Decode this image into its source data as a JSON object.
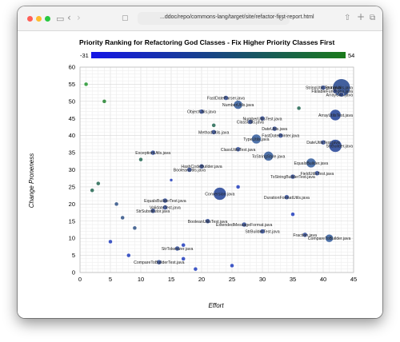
{
  "browser": {
    "url": "...ddoc/repo/commons-lang/target/site/refactor-first-report.html"
  },
  "chart_data": {
    "type": "scatter",
    "title": "Priority Ranking for Refactoring God Classes - Fix Higher Priority Classes First",
    "xlabel": "Effort",
    "ylabel": "Change Proneness",
    "xlim": [
      0,
      45
    ],
    "ylim": [
      0,
      60
    ],
    "x_ticks": [
      0,
      5,
      10,
      15,
      20,
      25,
      30,
      35,
      40,
      45
    ],
    "y_ticks": [
      0,
      5,
      10,
      15,
      20,
      25,
      30,
      35,
      40,
      45,
      50,
      55,
      60
    ],
    "grid": true,
    "colorscale": {
      "min_label": "-31",
      "max_label": "54",
      "low_color": "#1515e6",
      "high_color": "#1a7a1a"
    },
    "points": [
      {
        "x": 43,
        "y": 54,
        "r": 11,
        "c": "#2f4f94",
        "label": "StringUtils.java"
      },
      {
        "x": 40,
        "y": 54,
        "r": 3,
        "c": "#3b55a0",
        "label": "StringUtilsTest.java"
      },
      {
        "x": 42,
        "y": 53,
        "r": 3,
        "c": "#3b55a0",
        "label": "FailableFunctions.java"
      },
      {
        "x": 43,
        "y": 52,
        "r": 3,
        "c": "#3b55a0",
        "label": "ArrayUtils.java"
      },
      {
        "x": 42,
        "y": 46,
        "r": 7,
        "c": "#2c4a9a",
        "label": "ArrayUtilsTest.java"
      },
      {
        "x": 36,
        "y": 48,
        "r": 2.5,
        "c": "#2e6e5a",
        "label": ""
      },
      {
        "x": 24,
        "y": 51,
        "r": 3,
        "c": "#3b55a0",
        "label": "FastDateParser.java"
      },
      {
        "x": 26,
        "y": 49,
        "r": 5.5,
        "c": "#3c63a0",
        "label": "NumberUtils.java"
      },
      {
        "x": 20,
        "y": 47,
        "r": 3,
        "c": "#3b55a0",
        "label": "ObjectUtils.java"
      },
      {
        "x": 30,
        "y": 45,
        "r": 3,
        "c": "#3b55a0",
        "label": "NumberUtilsTest.java"
      },
      {
        "x": 28,
        "y": 44,
        "r": 3,
        "c": "#3b55a0",
        "label": "ClassUtils.java"
      },
      {
        "x": 22,
        "y": 43,
        "r": 2.5,
        "c": "#2e6e5a",
        "label": ""
      },
      {
        "x": 32,
        "y": 42,
        "r": 3,
        "c": "#3b55a0",
        "label": "DateUtils.java"
      },
      {
        "x": 22,
        "y": 41,
        "r": 3,
        "c": "#3b55a0",
        "label": "MethodUtils.java"
      },
      {
        "x": 33,
        "y": 40,
        "r": 3,
        "c": "#3b55a0",
        "label": "FastDatePrinter.java"
      },
      {
        "x": 29,
        "y": 39,
        "r": 6,
        "c": "#3c63a0",
        "label": "TypeUtils.java"
      },
      {
        "x": 42,
        "y": 37,
        "r": 8,
        "c": "#2c4a9a",
        "label": "StrBuilder.java"
      },
      {
        "x": 40,
        "y": 38,
        "r": 3,
        "c": "#3b55a0",
        "label": "DateUtilsTest.java"
      },
      {
        "x": 26,
        "y": 36,
        "r": 3,
        "c": "#3b55a0",
        "label": "ClassUtilsTest.java"
      },
      {
        "x": 31,
        "y": 34,
        "r": 6,
        "c": "#3c63a0",
        "label": "ToStringStyle.java"
      },
      {
        "x": 12,
        "y": 35,
        "r": 3,
        "c": "#3b55a0",
        "label": "ExceptionUtils.java"
      },
      {
        "x": 10,
        "y": 33,
        "r": 2.5,
        "c": "#2e6e5a",
        "label": ""
      },
      {
        "x": 38,
        "y": 32,
        "r": 6,
        "c": "#3c63a0",
        "label": "EqualsBuilder.java"
      },
      {
        "x": 20,
        "y": 31,
        "r": 3,
        "c": "#3b55a0",
        "label": "HashCodeBuilder.java"
      },
      {
        "x": 18,
        "y": 30,
        "r": 3,
        "c": "#3b55a0",
        "label": "BooleanUtils.java"
      },
      {
        "x": 39,
        "y": 29,
        "r": 3,
        "c": "#3b55a0",
        "label": "FieldUtilsTest.java"
      },
      {
        "x": 35,
        "y": 28,
        "r": 3,
        "c": "#3b55a0",
        "label": "ToStringBuilderTest.java"
      },
      {
        "x": 15,
        "y": 27,
        "r": 2,
        "c": "#2b46c0",
        "label": ""
      },
      {
        "x": 26,
        "y": 25,
        "r": 2.5,
        "c": "#2b46c0",
        "label": ""
      },
      {
        "x": 23,
        "y": 23,
        "r": 8,
        "c": "#2c4a9a",
        "label": "Conversion.java"
      },
      {
        "x": 34,
        "y": 22,
        "r": 3,
        "c": "#3b55a0",
        "label": "DurationFormatUtils.java"
      },
      {
        "x": 3,
        "y": 26,
        "r": 2.5,
        "c": "#2e6e5a",
        "label": ""
      },
      {
        "x": 2,
        "y": 24,
        "r": 2.5,
        "c": "#2e6e5a",
        "label": ""
      },
      {
        "x": 14,
        "y": 21,
        "r": 3,
        "c": "#3b55a0",
        "label": "EqualsBuilderTest.java"
      },
      {
        "x": 6,
        "y": 20,
        "r": 2.5,
        "c": "#3a5a8c",
        "label": ""
      },
      {
        "x": 14,
        "y": 19,
        "r": 3,
        "c": "#3b55a0",
        "label": "ValidateTest.java"
      },
      {
        "x": 12,
        "y": 18,
        "r": 3,
        "c": "#3b55a0",
        "label": "StrSubstitutor.java"
      },
      {
        "x": 35,
        "y": 17,
        "r": 2.5,
        "c": "#2b46c0",
        "label": ""
      },
      {
        "x": 7,
        "y": 16,
        "r": 2.5,
        "c": "#3a5a8c",
        "label": ""
      },
      {
        "x": 21,
        "y": 15,
        "r": 3,
        "c": "#3b55a0",
        "label": "BooleanUtilsTest.java"
      },
      {
        "x": 27,
        "y": 14,
        "r": 3,
        "c": "#3b55a0",
        "label": "ExtendedMessageFormat.java"
      },
      {
        "x": 9,
        "y": 13,
        "r": 2.5,
        "c": "#3a5a8c",
        "label": ""
      },
      {
        "x": 30,
        "y": 12,
        "r": 3,
        "c": "#3b55a0",
        "label": "StrBuilderTest.java"
      },
      {
        "x": 37,
        "y": 11,
        "r": 3,
        "c": "#3b55a0",
        "label": "Fraction.java"
      },
      {
        "x": 41,
        "y": 10,
        "r": 5,
        "c": "#3c63a0",
        "label": "CompareToBuilder.java"
      },
      {
        "x": 5,
        "y": 9,
        "r": 2.5,
        "c": "#2b46c0",
        "label": ""
      },
      {
        "x": 17,
        "y": 8,
        "r": 2.5,
        "c": "#2b46c0",
        "label": ""
      },
      {
        "x": 16,
        "y": 7,
        "r": 3,
        "c": "#3b55a0",
        "label": "StrTokenizer.java"
      },
      {
        "x": 8,
        "y": 5,
        "r": 2.5,
        "c": "#2b46c0",
        "label": ""
      },
      {
        "x": 17,
        "y": 4,
        "r": 2.5,
        "c": "#2b46c0",
        "label": ""
      },
      {
        "x": 13,
        "y": 3,
        "r": 3,
        "c": "#3b55a0",
        "label": "CompareToBuilderTest.java"
      },
      {
        "x": 25,
        "y": 2,
        "r": 2.5,
        "c": "#2b46c0",
        "label": ""
      },
      {
        "x": 19,
        "y": 1,
        "r": 2.5,
        "c": "#2b46c0",
        "label": ""
      },
      {
        "x": 1,
        "y": 55,
        "r": 2.5,
        "c": "#2e9a3a",
        "label": ""
      },
      {
        "x": 4,
        "y": 50,
        "r": 2.5,
        "c": "#2e8a3a",
        "label": ""
      }
    ]
  }
}
